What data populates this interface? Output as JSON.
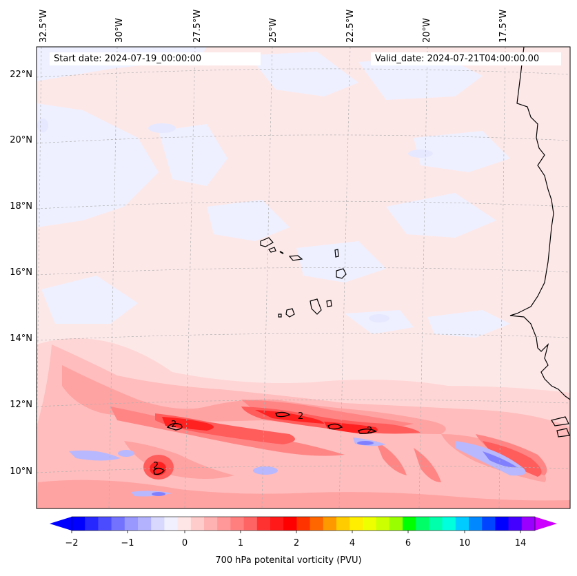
{
  "header": {
    "start_date": "Start date: 2024-07-19_00:00:00",
    "valid_date": "Valid_date: 2024-07-21T04:00:00.00"
  },
  "map": {
    "lon_labels": [
      "32.5°W",
      "30°W",
      "27.5°W",
      "25°W",
      "22.5°W",
      "20°W",
      "17.5°W"
    ],
    "lat_labels": [
      "22°N",
      "20°N",
      "18°N",
      "16°N",
      "14°N",
      "12°N",
      "10°N"
    ],
    "background_color": "#fde8e8"
  },
  "colorbar": {
    "title": "700 hPa potenital vorticity (PVU)",
    "tick_labels": [
      "−2",
      "−1",
      "0",
      "1",
      "2",
      "4",
      "6",
      "10",
      "14"
    ],
    "colors": [
      "#0000ff",
      "#2626ff",
      "#4c4cff",
      "#7272ff",
      "#9898ff",
      "#b2b2ff",
      "#d8d8ff",
      "#f0f0ff",
      "#ffe6e6",
      "#ffcccc",
      "#ffb2b2",
      "#ff9898",
      "#ff7f7f",
      "#ff6464",
      "#ff3232",
      "#ff1919",
      "#ff0000",
      "#ff3300",
      "#ff6600",
      "#ff9900",
      "#ffcc00",
      "#ffee00",
      "#eeff00",
      "#ccff00",
      "#99ff00",
      "#00ff00",
      "#00ff66",
      "#00ffaa",
      "#00ffdd",
      "#00ccff",
      "#0088ff",
      "#0044ff",
      "#0000ff",
      "#4400ff",
      "#9900ff"
    ],
    "extend_low_color": "#0000ff",
    "extend_high_color": "#cc00ff"
  }
}
